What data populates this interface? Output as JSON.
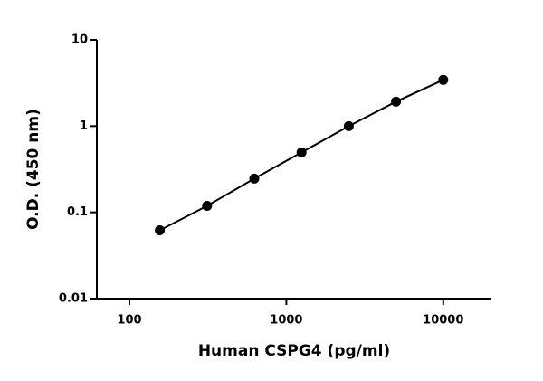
{
  "chart_data": {
    "type": "scatter",
    "x_label": "Human CSPG4 (pg/ml)",
    "y_label": "O.D. (450 nm)",
    "x": [
      156.25,
      312.5,
      625,
      1250,
      2500,
      5000,
      10000
    ],
    "values": [
      0.062,
      0.119,
      0.246,
      0.496,
      1.0,
      1.92,
      3.43
    ],
    "color": "#000000",
    "connect": true,
    "xlog": true,
    "ylog": true,
    "xlim": [
      62,
      20000
    ],
    "ylim": [
      0.01,
      10
    ],
    "xticks": [
      100,
      1000,
      10000
    ],
    "yticks": [
      0.01,
      0.1,
      1,
      10
    ]
  }
}
